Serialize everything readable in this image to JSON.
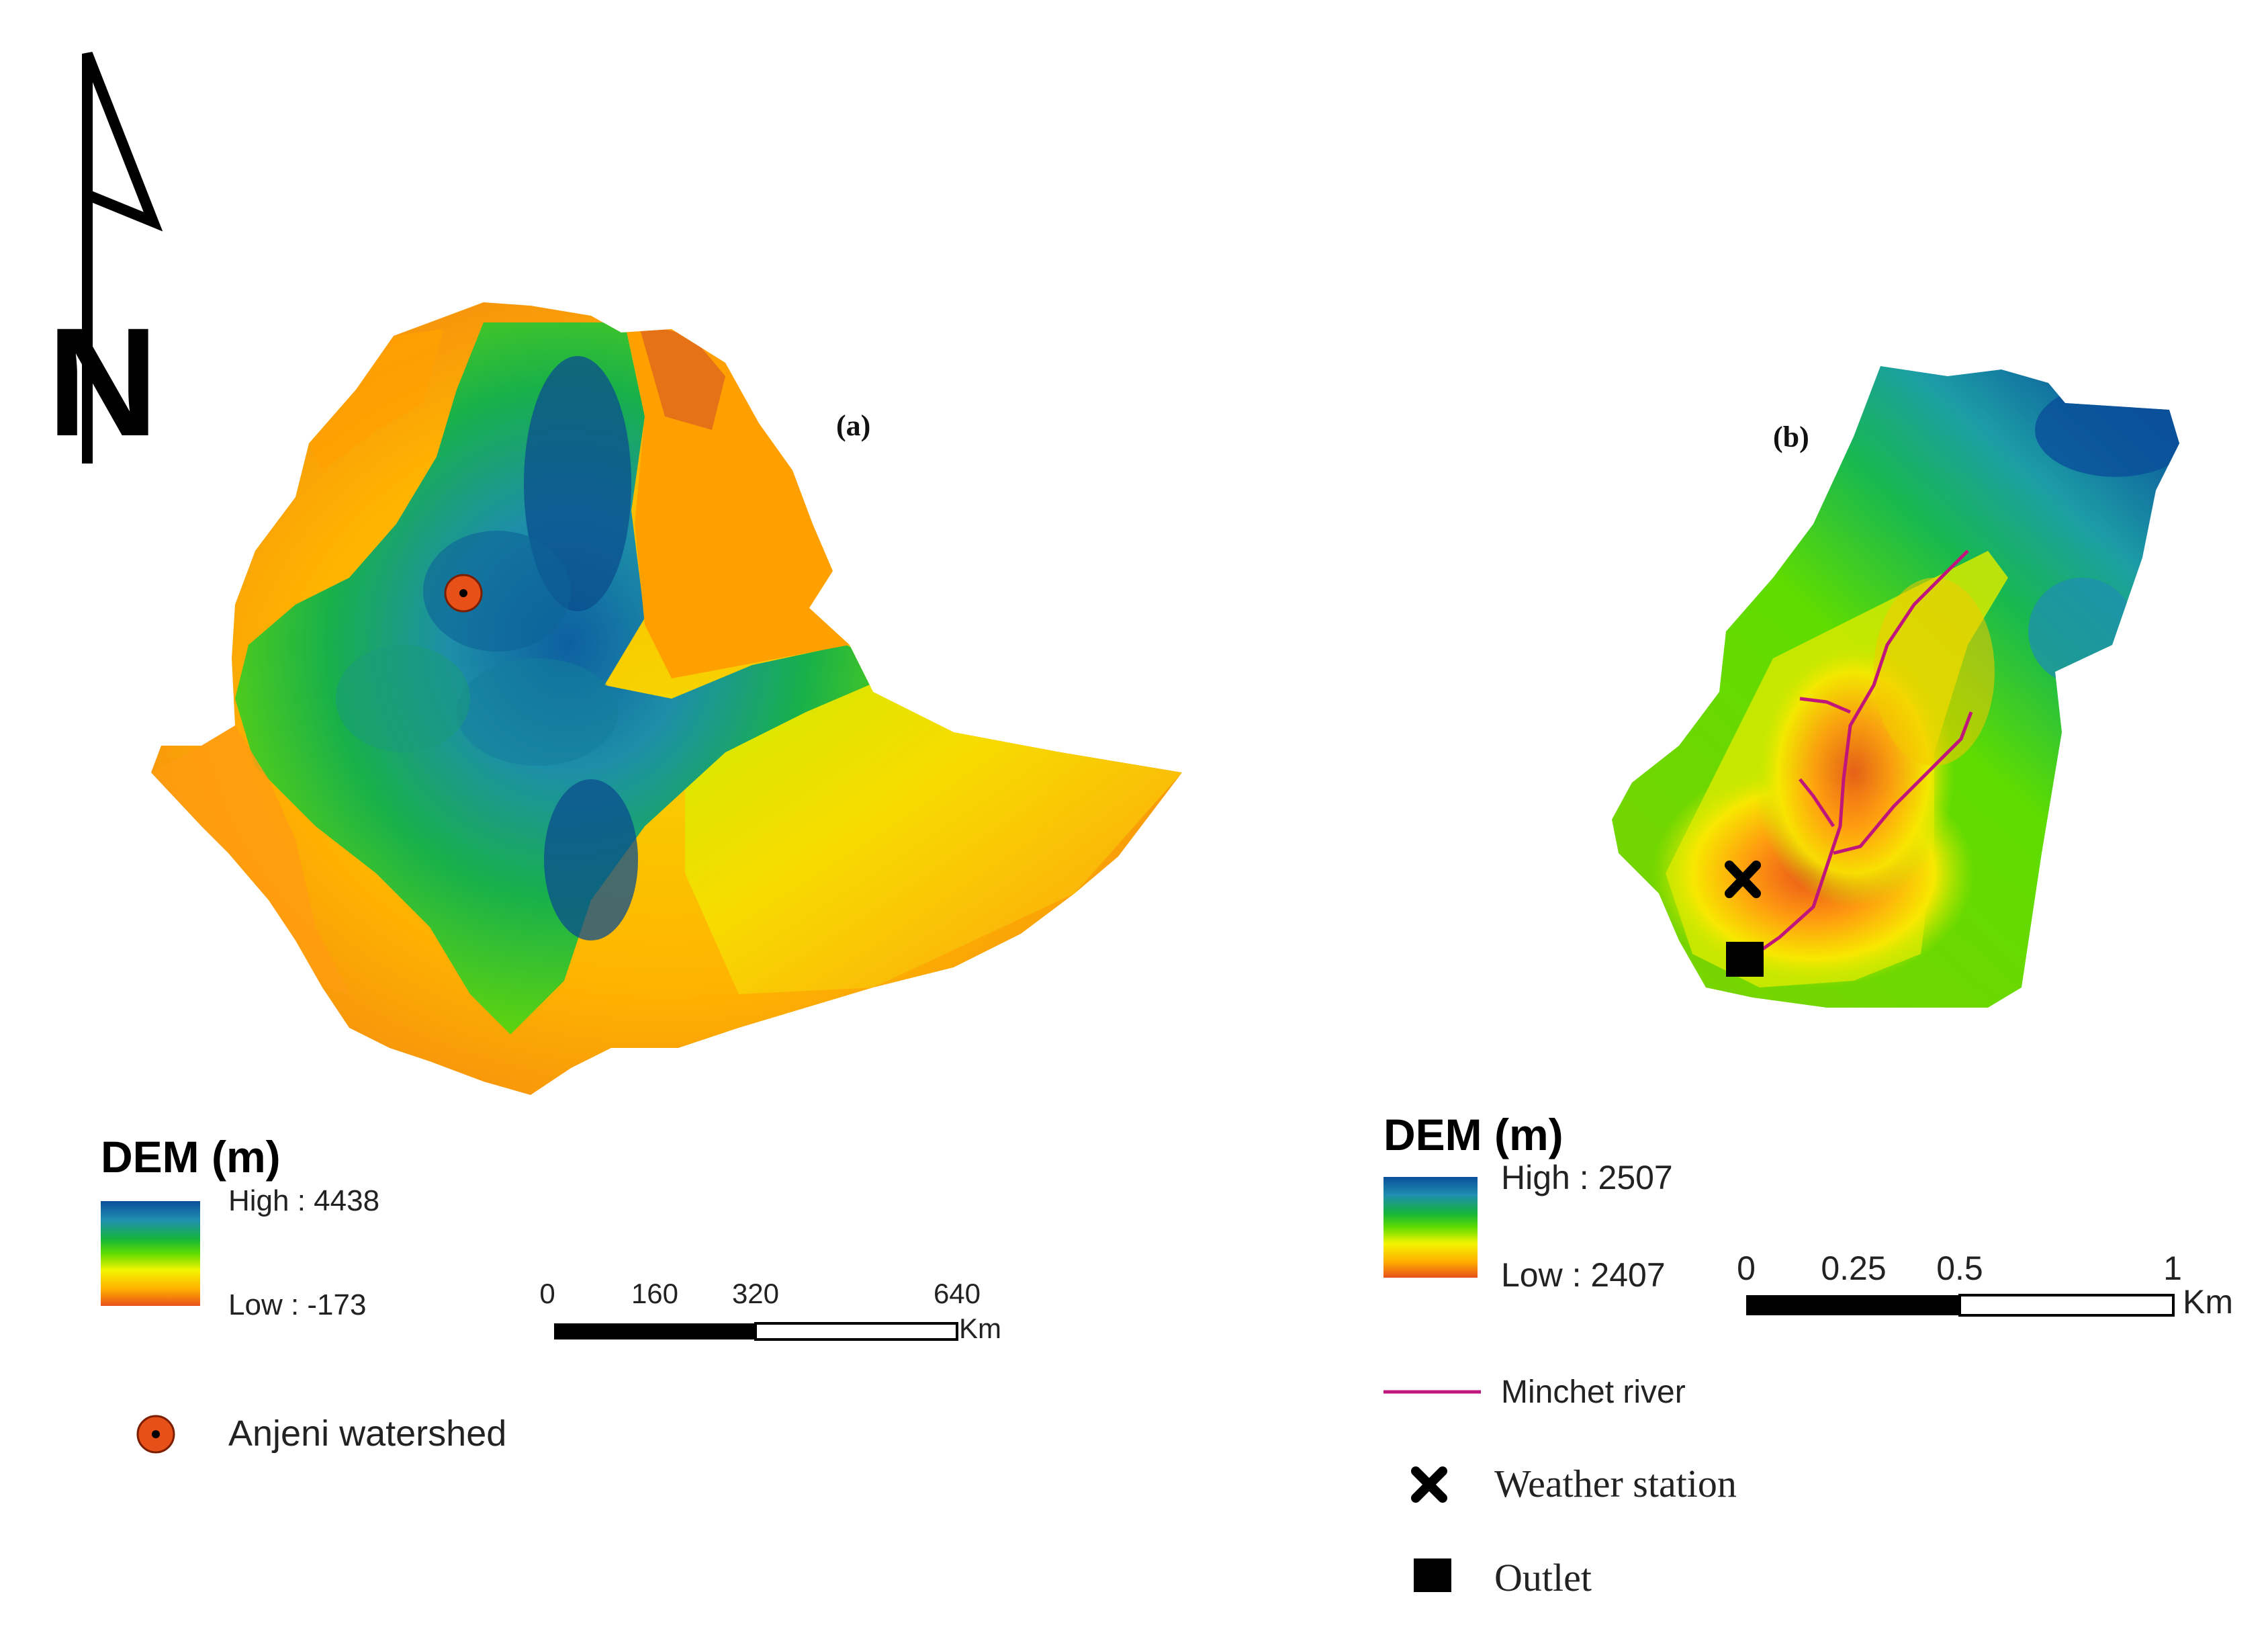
{
  "north_arrow": {
    "letter": "N"
  },
  "panel_a": {
    "label": "(a)",
    "legend": {
      "title": "DEM (m)",
      "high": "High : 4438",
      "low": "Low : -173",
      "colors": [
        "#0a4f9a",
        "#1f8fb0",
        "#15b43c",
        "#5fdc00",
        "#f4f400",
        "#ffb000",
        "#e8501a"
      ]
    },
    "scale_bar": {
      "ticks": [
        "0",
        "160",
        "320",
        "640"
      ],
      "unit": "Km"
    },
    "marker_label": "Anjeni watershed",
    "marker_color": "#e8501a"
  },
  "panel_b": {
    "label": "(b)",
    "legend": {
      "title": "DEM (m)",
      "high": "High : 2507",
      "low": "Low : 2407",
      "colors": [
        "#0a4f9a",
        "#1f8fb0",
        "#15b43c",
        "#5fdc00",
        "#f4f400",
        "#ffb000",
        "#e8501a"
      ]
    },
    "scale_bar": {
      "ticks": [
        "0",
        "0.25",
        "0.5",
        "1"
      ],
      "unit": "Km"
    },
    "river_label": "Minchet river",
    "river_color": "#c0157a",
    "station_label": "Weather station",
    "outlet_label": "Outlet"
  }
}
